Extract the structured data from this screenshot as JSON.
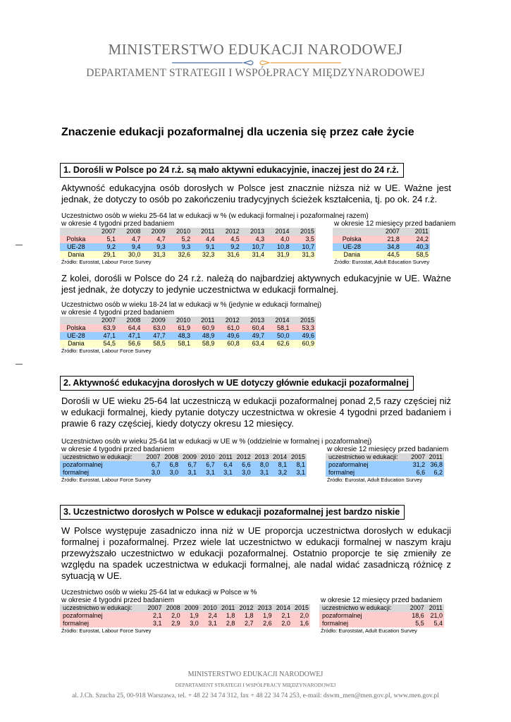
{
  "header": {
    "ministry": "MINISTERSTWO EDUKACJI NARODOWEJ",
    "department": "DEPARTAMENT STRATEGII I WSPÓŁPRACY MIĘDZYNARODOWEJ",
    "colors": {
      "left_line": "#4a6fa5",
      "right_line": "#e8a040"
    }
  },
  "title": "Znaczenie edukacji pozaformalnej dla uczenia się przez całe życie",
  "sections": [
    {
      "heading": "1. Dorośli w Polsce po 24 r.ż. są mało aktywni edukacyjnie, inaczej jest do 24 r.ż.",
      "para1": "Aktywność edukacyjna osób dorosłych w Polsce jest znacznie niższa niż w UE. Ważne jest jednak, że dotyczy to osób po zakończeniu tradycyjnych ścieżek kształcenia, tj. po ok. 24 r.ż.",
      "table1": {
        "caption": "Uczestnictwo osób w wieku 25-64 lat w edukacji w % (w edukacji formalnej i pozaformalnej razem)",
        "left": {
          "subtitle": "w okresie 4 tygodni przed badaniem",
          "header": [
            "",
            "2007",
            "2008",
            "2009",
            "2010",
            "2011",
            "2012",
            "2013",
            "2014",
            "2015"
          ],
          "rows": [
            [
              "Polska",
              "5,1",
              "4,7",
              "4,7",
              "5,2",
              "4,4",
              "4,5",
              "4,3",
              "4,0",
              "3,5"
            ],
            [
              "UE-28",
              "9,2",
              "9,4",
              "9,3",
              "9,3",
              "9,1",
              "9,2",
              "10,7",
              "10,8",
              "10,7"
            ],
            [
              "Dania",
              "29,1",
              "30,0",
              "31,3",
              "32,6",
              "32,3",
              "31,6",
              "31,4",
              "31,9",
              "31,3"
            ]
          ],
          "source": "Źródło: Eurostat, Labour Force Survey"
        },
        "right": {
          "subtitle": "w okresie 12 miesięcy przed badaniem",
          "header": [
            "",
            "2007",
            "2011"
          ],
          "rows": [
            [
              "Polska",
              "21,8",
              "24,2"
            ],
            [
              "UE-28",
              "34,8",
              "40,3"
            ],
            [
              "Dania",
              "44,5",
              "58,5"
            ]
          ],
          "source": "Źródło: Eurostat, Adult Education Survey"
        }
      },
      "para2": "Z kolei, dorośli w Polsce do 24 r.ż. należą do najbardziej aktywnych edukacyjnie w UE. Ważne jest jednak, że dotyczy to jedynie uczestnictwa w edukacji formalnej.",
      "table2": {
        "caption": "Uczestnictwo osób w wieku 18-24 lat w edukacji w % (jedynie w edukacji formalnej)",
        "left": {
          "subtitle": "w okresie 4 tygodni przed badaniem",
          "header": [
            "",
            "2007",
            "2008",
            "2009",
            "2010",
            "2011",
            "2012",
            "2013",
            "2014",
            "2015"
          ],
          "rows": [
            [
              "Polska",
              "63,9",
              "64,4",
              "63,0",
              "61,9",
              "60,9",
              "61,0",
              "60,4",
              "58,1",
              "53,3"
            ],
            [
              "UE-28",
              "47,1",
              "47,1",
              "47,7",
              "48,3",
              "48,9",
              "49,6",
              "49,7",
              "50,0",
              "49,6"
            ],
            [
              "Dania",
              "54,5",
              "56,6",
              "58,5",
              "58,1",
              "58,9",
              "60,8",
              "63,4",
              "62,6",
              "60,9"
            ]
          ],
          "source": "Źródło: Eurostat, Labour Force Survey"
        }
      }
    },
    {
      "heading": "2. Aktywność edukacyjna dorosłych w UE dotyczy głównie edukacji pozaformalnej",
      "para1": "Dorośli w UE wieku 25-64 lat uczestniczą w edukacji pozaformalnej ponad 2,5 razy częściej niż w edukacji formalnej, kiedy pytanie dotyczy uczestnictwa w okresie 4 tygodni przed badaniem i prawie 6 razy częściej, kiedy dotyczy okresu 12 miesięcy.",
      "table1": {
        "caption": "Uczestnictwo osób w wieku 25-64 lat w edukacji w UE w % (oddzielnie w formalnej i pozaformalnej)",
        "left": {
          "subtitle": "w okresie 4 tygodni przed badaniem",
          "header": [
            "uczestnictwo w edukacji:",
            "2007",
            "2008",
            "2009",
            "2010",
            "2011",
            "2012",
            "2013",
            "2014",
            "2015"
          ],
          "rows": [
            [
              "pozaformalnej",
              "6,7",
              "6,8",
              "6,7",
              "6,7",
              "6,4",
              "6,6",
              "8,0",
              "8,1",
              "8,1"
            ],
            [
              "formalnej",
              "3,0",
              "3,0",
              "3,1",
              "3,1",
              "3,1",
              "3,0",
              "3,1",
              "3,2",
              "3,1"
            ]
          ],
          "source": "Źródło: Eurostat, Labour Force Survey"
        },
        "right": {
          "subtitle": "w okresie 12 miesięcy przed badaniem",
          "header": [
            "uczestnictwo w edukacji:",
            "2007",
            "2011"
          ],
          "rows": [
            [
              "pozaformalnej",
              "31,2",
              "36,8"
            ],
            [
              "formalnej",
              "6,6",
              "6,2"
            ]
          ],
          "source": "Źródło: Eurostat, Adult Education Survey"
        }
      }
    },
    {
      "heading": "3. Uczestnictwo dorosłych w Polsce w edukacji pozaformalnej jest bardzo niskie",
      "para1": "W Polsce występuje zasadniczo inna niż w UE proporcja uczestnictwa dorosłych w edukacji formalnej i pozaformalnej. Przez wiele lat uczestnictwo w edukacji formalnej w naszym kraju przewyższało uczestnictwo w edukacji pozaformalnej. Ostatnio proporcje te się zmieniły ze względu na spadek uczestnictwa w edukacji formalnej, ale nadal widać zasadniczą różnicę z sytuacją w UE.",
      "table1": {
        "caption": "Uczestnictwo osób w wieku 25-64 lat w edukacji w Polsce w %",
        "left": {
          "subtitle": "w okresie 4 tygodni przed badaniem",
          "header": [
            "uczestnictwo w edukacji:",
            "2007",
            "2008",
            "2009",
            "2010",
            "2011",
            "2012",
            "2013",
            "2014",
            "2015"
          ],
          "rows": [
            [
              "pozaformalnej",
              "2,1",
              "2,0",
              "1,9",
              "2,4",
              "1,8",
              "1,8",
              "1,9",
              "2,1",
              "2,0"
            ],
            [
              "formalnej",
              "3,1",
              "2,9",
              "3,0",
              "3,1",
              "2,8",
              "2,7",
              "2,6",
              "2,0",
              "1,6"
            ]
          ],
          "source": "Źródło: Eurostat, Labour Force Survey"
        },
        "right": {
          "subtitle": "w okresie 12 miesięcy przed badaniem",
          "header": [
            "uczestnictwo w edukacji:",
            "2007",
            "2011"
          ],
          "rows": [
            [
              "pozaformalnej",
              "18,6",
              "21,0"
            ],
            [
              "formalnej",
              "5,5",
              "5,4"
            ]
          ],
          "source": "Źródło: Euroststat, Adult Eucation Survey"
        }
      }
    }
  ],
  "footer": {
    "ministry": "MINISTERSTWO EDUKACJI NARODOWEJ",
    "department": "DEPARTAMENT STRATEGII I WSPÓŁPRACY MIĘDZYNARODOWEJ",
    "address": "al. J.Ch. Szucha 25, 00-918 Warszawa, tel. + 48 22 34 74 312, fax + 48 22 34 74 253, e-mail: dswm_men@men.gov.pl, www.men.gov.pl"
  },
  "colors": {
    "row_pink": "#ffcccc",
    "row_blue": "#99ccff",
    "row_yellow": "#ffffcc",
    "header_gray": "#d9d9d9"
  }
}
